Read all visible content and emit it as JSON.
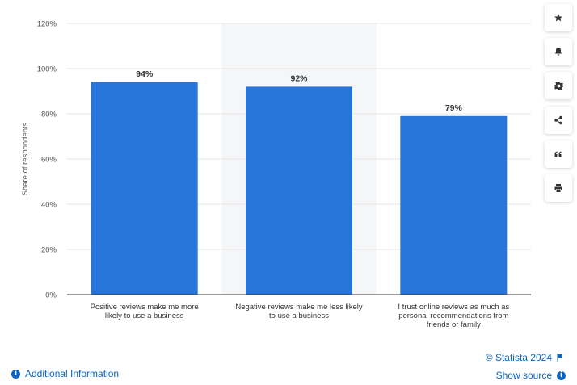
{
  "chart_data": {
    "type": "bar",
    "categories": [
      [
        "Positive reviews make me more",
        "likely to use a business"
      ],
      [
        "Negative reviews make me less likely",
        "to use a business"
      ],
      [
        "I trust online reviews as much as",
        "personal recommendations from",
        "friends or family"
      ]
    ],
    "values": [
      94,
      92,
      79
    ],
    "data_labels": [
      "94%",
      "92%",
      "79%"
    ],
    "ylabel": "Share of respondents",
    "ylim": [
      0,
      120
    ],
    "yticks": [
      0,
      20,
      40,
      60,
      80,
      100,
      120
    ],
    "ytick_labels": [
      "0%",
      "20%",
      "40%",
      "60%",
      "80%",
      "100%",
      "120%"
    ],
    "highlighted_category_index": 1,
    "grid": true,
    "colors": {
      "bar": "#2775db",
      "grid": "#e6e6e6",
      "highlight": "#f5f6f8",
      "axis": "#333333"
    }
  },
  "toolbar": [
    {
      "name": "favorite-icon"
    },
    {
      "name": "notification-bell-icon"
    },
    {
      "name": "settings-gear-icon"
    },
    {
      "name": "share-icon"
    },
    {
      "name": "cite-quote-icon"
    },
    {
      "name": "print-icon"
    }
  ],
  "footer": {
    "additional_info": "Additional Information",
    "copyright": "© Statista 2024",
    "show_source": "Show source"
  }
}
